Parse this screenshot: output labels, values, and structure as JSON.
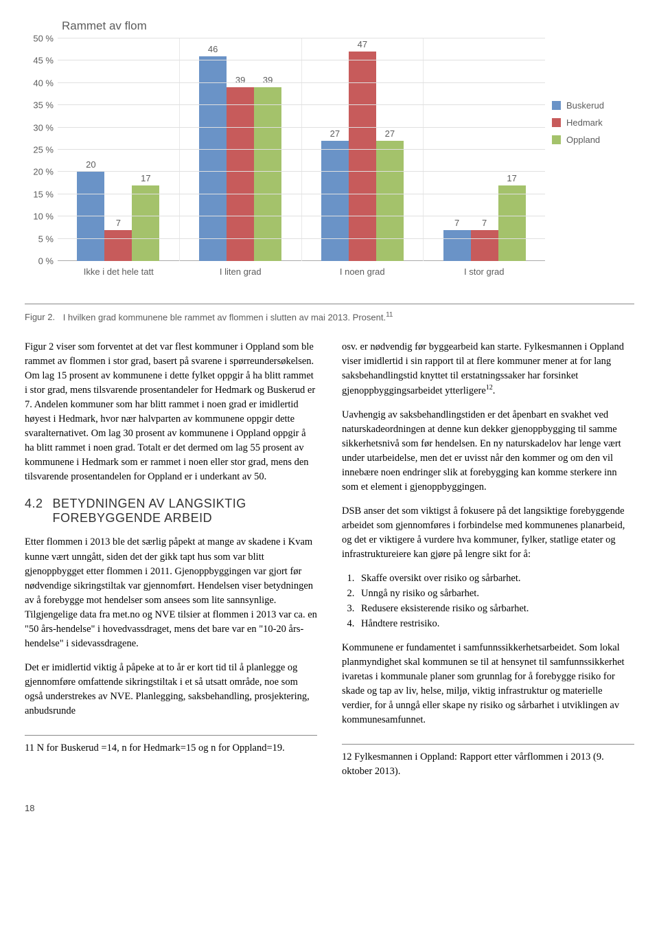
{
  "chart": {
    "title": "Rammet av flom",
    "type": "bar",
    "ymax": 50,
    "ytick_step": 5,
    "y_suffix": " %",
    "categories": [
      "Ikke i det hele tatt",
      "I liten grad",
      "I noen grad",
      "I stor grad"
    ],
    "series": [
      {
        "name": "Buskerud",
        "color": "#6a93c7",
        "values": [
          20,
          46,
          27,
          7
        ]
      },
      {
        "name": "Hedmark",
        "color": "#c75b5b",
        "values": [
          7,
          39,
          47,
          7
        ]
      },
      {
        "name": "Oppland",
        "color": "#a4c26b",
        "values": [
          17,
          39,
          27,
          17
        ]
      }
    ],
    "grid_color": "#e0e0e0",
    "background_color": "#ffffff",
    "label_color": "#5c5c5c",
    "label_fontsize": 13,
    "title_fontsize": 17
  },
  "caption": {
    "label": "Figur 2.",
    "text": "I hvilken grad kommunene ble rammet av flommen i slutten av mai 2013. Prosent.",
    "sup": "11"
  },
  "body": {
    "left": {
      "p1": "Figur 2 viser som forventet at det var flest kommuner i Oppland som ble rammet av flommen i stor grad, basert på svarene i spørreundersøkelsen. Om lag 15 prosent av kommunene i dette fylket oppgir å ha blitt rammet i stor grad, mens tilsvarende prosentandeler for Hedmark og Buskerud er 7. Andelen kommuner som har blitt rammet i noen grad er imidlertid høyest i Hedmark, hvor nær halvparten av kommunene oppgir dette svaralternativet. Om lag 30 prosent av kommunene i Oppland oppgir å ha blitt rammet i noen grad. Totalt er det dermed om lag 55 prosent av kommunene i Hedmark som er rammet i noen eller stor grad, mens den tilsvarende prosentandelen for Oppland er i underkant av 50.",
      "section_num": "4.2",
      "section_title": "BETYDNINGEN AV LANGSIKTIG FOREBYGGENDE ARBEID",
      "p2": "Etter flommen i 2013 ble det særlig påpekt at mange av skadene i Kvam kunne vært unngått, siden det der gikk tapt hus som var blitt gjenoppbygget etter flommen i 2011. Gjenoppbyggingen var gjort før nødvendige sikringstiltak var gjennomført. Hendelsen viser betydningen av å forebygge mot hendelser som ansees som lite sannsynlige. Tilgjengelige data fra met.no og NVE tilsier at flommen i 2013 var ca. en \"50 års-hendelse\" i hovedvassdraget, mens det bare var en \"10-20 års-hendelse\" i sidevassdragene.",
      "p3": "Det er imidlertid viktig å påpeke at to år er kort tid til å planlegge og gjennomføre omfattende sikringstiltak i et så utsatt område, noe som også understrekes av NVE. Planlegging, saksbehandling, prosjektering, anbudsrunde"
    },
    "right": {
      "p1a": "osv. er nødvendig før byggearbeid kan starte. Fylkesmannen i Oppland viser imidlertid i sin rapport til at flere kommuner mener at for lang saksbehandlingstid knyttet til erstatningssaker har forsinket gjenoppbyggingsarbeidet ytterligere",
      "p1_sup": "12",
      "p1b": ".",
      "p2": "Uavhengig av saksbehandlingstiden er det åpenbart en svakhet ved naturskadeordningen at denne kun dekker gjenoppbygging til samme sikkerhetsnivå som før hendelsen. En ny naturskadelov har lenge vært under utarbeidelse, men det er uvisst når den kommer og om den vil innebære noen endringer slik at forebygging kan komme sterkere inn som et element i gjenoppbyggingen.",
      "p3": "DSB anser det som viktigst å fokusere på det langsiktige forebyggende arbeidet som gjennomføres i forbindelse med kommunenes planarbeid, og det er viktigere å vurdere hva kommuner, fylker, statlige etater og infrastruktureiere kan gjøre på lengre sikt for å:",
      "list": [
        "Skaffe oversikt over risiko og sårbarhet.",
        "Unngå ny risiko og sårbarhet.",
        "Redusere eksisterende risiko og sårbarhet.",
        "Håndtere restrisiko."
      ],
      "p4": "Kommunene er fundamentet i samfunnssikkerhetsarbeidet. Som lokal planmyndighet skal kommunen se til at hensynet til samfunnssikkerhet ivaretas i kommunale planer som grunnlag for å forebygge risiko for skade og tap av liv, helse, miljø, viktig infrastruktur og materielle verdier, for å unngå eller skape ny risiko og sårbarhet i utviklingen av kommunesamfunnet."
    }
  },
  "footnotes": {
    "left": "11 N for Buskerud =14, n for Hedmark=15 og n for Oppland=19.",
    "right": "12 Fylkesmannen i Oppland: Rapport etter vårflommen i 2013 (9. oktober 2013)."
  },
  "page_number": "18"
}
